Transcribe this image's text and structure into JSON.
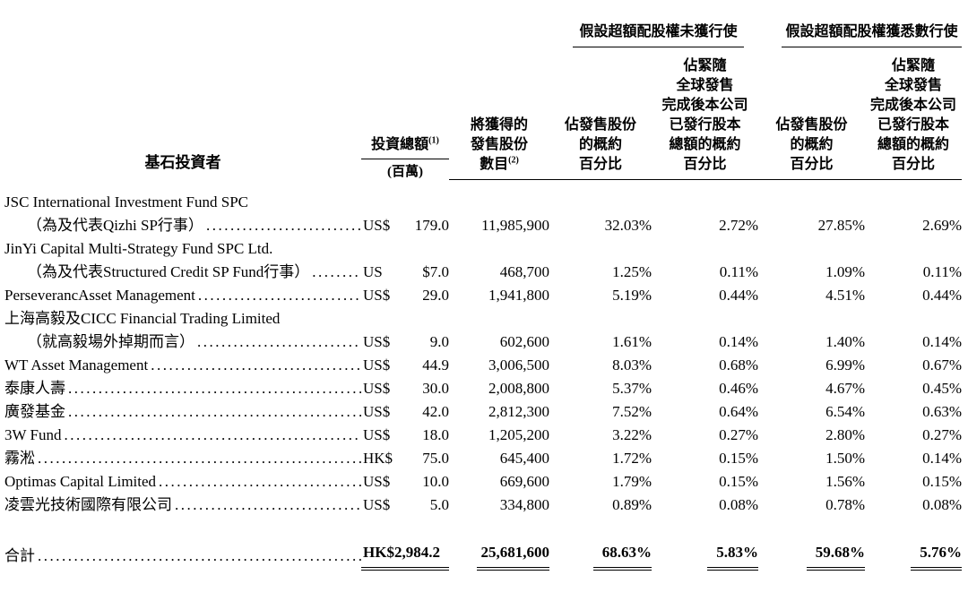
{
  "table": {
    "col_headers": {
      "investor": "基石投資者",
      "investment": "投資總額",
      "investment_note": "(1)",
      "investment_unit": "(百萬)",
      "shares_l1": "將獲得的",
      "shares_l2": "發售股份",
      "shares_l3": "數目",
      "shares_note": "(2)",
      "group_no_exercise": "假設超額配股權未獲行使",
      "group_full_exercise": "假設超額配股權獲悉數行使",
      "pct_offer_l1": "佔發售股份",
      "pct_offer_l2": "的概約",
      "pct_offer_l3": "百分比",
      "pct_capital_l1": "佔緊隨",
      "pct_capital_l2": "全球發售",
      "pct_capital_l3": "完成後本公司",
      "pct_capital_l4": "已發行股本",
      "pct_capital_l5": "總額的概約",
      "pct_capital_l6": "百分比"
    },
    "rows": [
      {
        "name_line1": "JSC International Investment Fund SPC",
        "name_line2": "（為及代表Qizhi SP行事）",
        "currency": "US$",
        "amount": "179.0",
        "shares": "11,985,900",
        "pct_offer_no": "32.03%",
        "pct_capital_no": "2.72%",
        "pct_offer_full": "27.85%",
        "pct_capital_full": "2.69%"
      },
      {
        "name_line1": "JinYi Capital Multi-Strategy Fund SPC Ltd.",
        "name_line2": "（為及代表Structured Credit SP Fund行事）",
        "currency": "US",
        "amount": "$7.0",
        "shares": "468,700",
        "pct_offer_no": "1.25%",
        "pct_capital_no": "0.11%",
        "pct_offer_full": "1.09%",
        "pct_capital_full": "0.11%"
      },
      {
        "name_line1": "PerseverancAsset Management",
        "currency": "US$",
        "amount": "29.0",
        "shares": "1,941,800",
        "pct_offer_no": "5.19%",
        "pct_capital_no": "0.44%",
        "pct_offer_full": "4.51%",
        "pct_capital_full": "0.44%"
      },
      {
        "name_line1": "上海高毅及CICC Financial Trading Limited",
        "name_line2": "（就高毅場外掉期而言）",
        "currency": "US$",
        "amount": "9.0",
        "shares": "602,600",
        "pct_offer_no": "1.61%",
        "pct_capital_no": "0.14%",
        "pct_offer_full": "1.40%",
        "pct_capital_full": "0.14%"
      },
      {
        "name_line1": "WT Asset Management",
        "currency": "US$",
        "amount": "44.9",
        "shares": "3,006,500",
        "pct_offer_no": "8.03%",
        "pct_capital_no": "0.68%",
        "pct_offer_full": "6.99%",
        "pct_capital_full": "0.67%"
      },
      {
        "name_line1": "泰康人壽",
        "currency": "US$",
        "amount": "30.0",
        "shares": "2,008,800",
        "pct_offer_no": "5.37%",
        "pct_capital_no": "0.46%",
        "pct_offer_full": "4.67%",
        "pct_capital_full": "0.45%"
      },
      {
        "name_line1": "廣發基金",
        "currency": "US$",
        "amount": "42.0",
        "shares": "2,812,300",
        "pct_offer_no": "7.52%",
        "pct_capital_no": "0.64%",
        "pct_offer_full": "6.54%",
        "pct_capital_full": "0.63%"
      },
      {
        "name_line1": "3W Fund",
        "currency": "US$",
        "amount": "18.0",
        "shares": "1,205,200",
        "pct_offer_no": "3.22%",
        "pct_capital_no": "0.27%",
        "pct_offer_full": "2.80%",
        "pct_capital_full": "0.27%"
      },
      {
        "name_line1": "霧淞",
        "currency": "HK$",
        "amount": "75.0",
        "shares": "645,400",
        "pct_offer_no": "1.72%",
        "pct_capital_no": "0.15%",
        "pct_offer_full": "1.50%",
        "pct_capital_full": "0.14%"
      },
      {
        "name_line1": "Optimas Capital Limited",
        "currency": "US$",
        "amount": "10.0",
        "shares": "669,600",
        "pct_offer_no": "1.79%",
        "pct_capital_no": "0.15%",
        "pct_offer_full": "1.56%",
        "pct_capital_full": "0.15%"
      },
      {
        "name_line1": "凌雲光技術國際有限公司",
        "currency": "US$",
        "amount": "5.0",
        "shares": "334,800",
        "pct_offer_no": "0.89%",
        "pct_capital_no": "0.08%",
        "pct_offer_full": "0.78%",
        "pct_capital_full": "0.08%"
      }
    ],
    "total": {
      "label": "合計",
      "investment": "HK$2,984.2",
      "shares": "25,681,600",
      "pct_offer_no": "68.63%",
      "pct_capital_no": "5.83%",
      "pct_offer_full": "59.68%",
      "pct_capital_full": "5.76%"
    }
  }
}
